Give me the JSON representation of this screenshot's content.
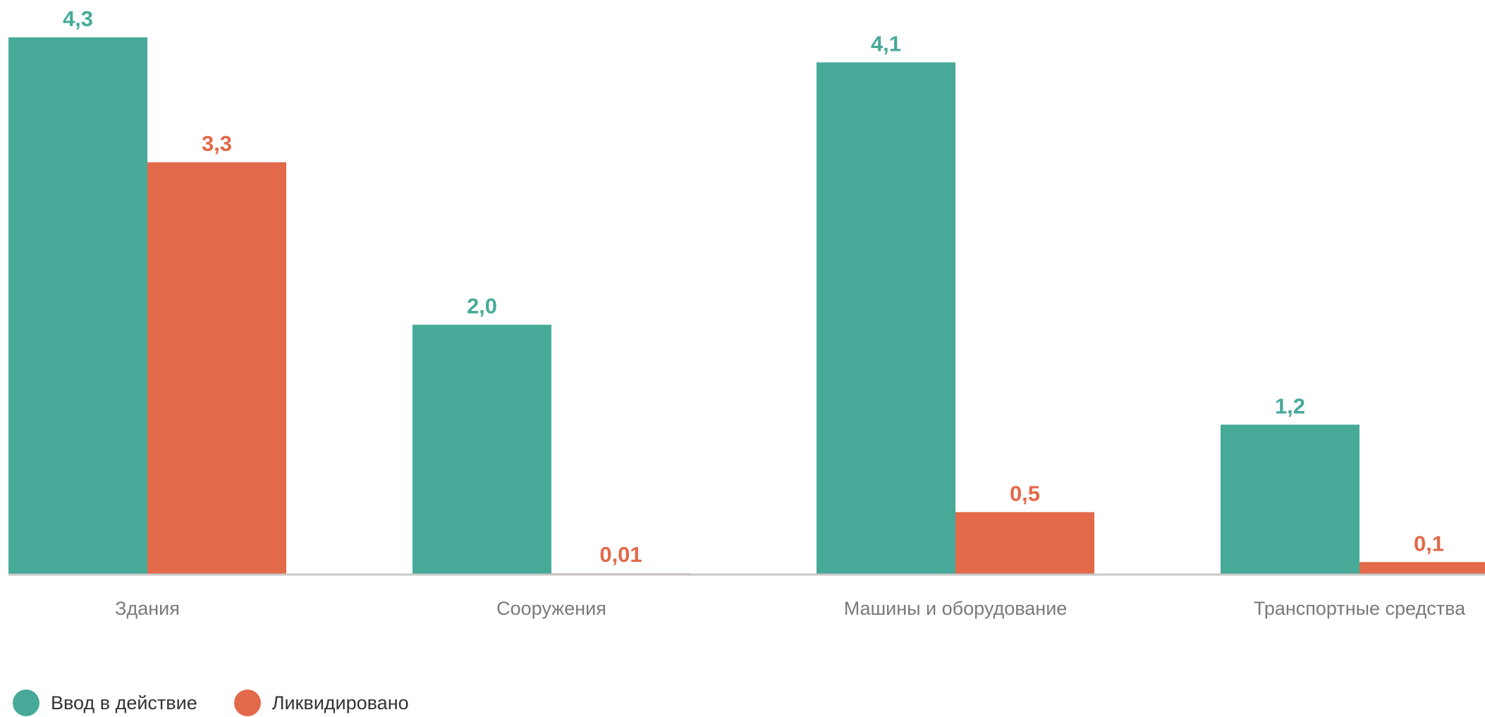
{
  "chart_data": {
    "type": "bar",
    "categories": [
      "Здания",
      "Сооружения",
      "Машины и оборудование",
      "Транспортные средства"
    ],
    "series": [
      {
        "name": "Ввод в действие",
        "color": "#47aa98",
        "values": [
          4.3,
          2.0,
          4.1,
          1.2
        ],
        "labels": [
          "4,3",
          "2,0",
          "4,1",
          "1,2"
        ]
      },
      {
        "name": "Ликвидировано",
        "color": "#e2694a",
        "values": [
          3.3,
          0.01,
          0.5,
          0.1
        ],
        "labels": [
          "3,3",
          "0,01",
          "0,5",
          "0,1"
        ]
      }
    ],
    "ylim": [
      0,
      4.3
    ],
    "legend_position": "bottom-left",
    "grid": false
  }
}
